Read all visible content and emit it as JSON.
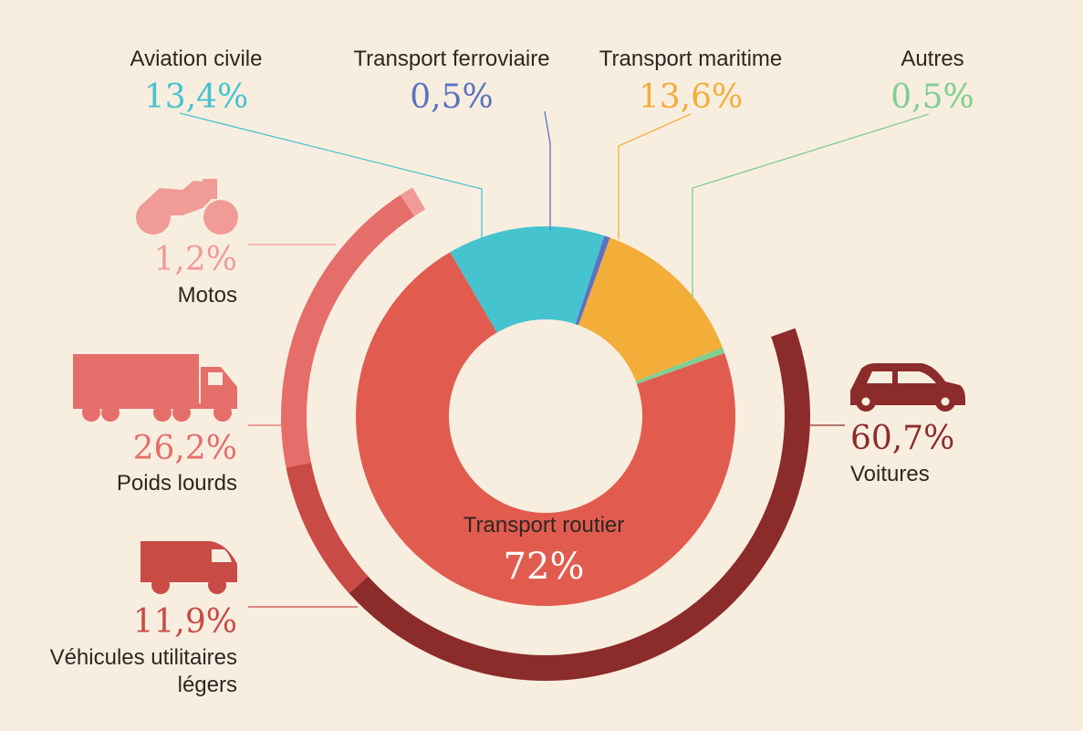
{
  "chart_data": [
    {
      "type": "pie",
      "series": [
        {
          "name": "Transport routier",
          "label": "Transport routier",
          "pct_text": "72%",
          "value": 72,
          "color": "#e15c4f"
        },
        {
          "name": "Aviation civile",
          "label": "Aviation civile",
          "pct_text": "13,4%",
          "value": 13.4,
          "color": "#45c3cf"
        },
        {
          "name": "Transport ferroviaire",
          "label": "Transport ferroviaire",
          "pct_text": "0,5%",
          "value": 0.5,
          "color": "#5a73c2"
        },
        {
          "name": "Transport maritime",
          "label": "Transport maritime",
          "pct_text": "13,6%",
          "value": 13.6,
          "color": "#f3ad39"
        },
        {
          "name": "Autres",
          "label": "Autres",
          "pct_text": "0,5%",
          "value": 0.5,
          "color": "#7fcf90"
        }
      ]
    },
    {
      "type": "pie",
      "parent": "Transport routier",
      "series": [
        {
          "name": "Motos",
          "label": "Motos",
          "pct_text": "1,2%",
          "value": 1.2,
          "color": "#f09b95",
          "icon": "motorcycle-icon"
        },
        {
          "name": "Poids lourds",
          "label": "Poids lourds",
          "pct_text": "26,2%",
          "value": 26.2,
          "color": "#e56e6b",
          "icon": "truck-icon"
        },
        {
          "name": "Véhicules utilitaires légers",
          "label_lines": [
            "Véhicules utilitaires",
            "légers"
          ],
          "pct_text": "11,9%",
          "value": 11.9,
          "color": "#c84b45",
          "icon": "van-icon"
        },
        {
          "name": "Voitures",
          "label": "Voitures",
          "pct_text": "60,7%",
          "value": 60.7,
          "color": "#8c2c2a",
          "icon": "car-icon"
        }
      ]
    }
  ]
}
